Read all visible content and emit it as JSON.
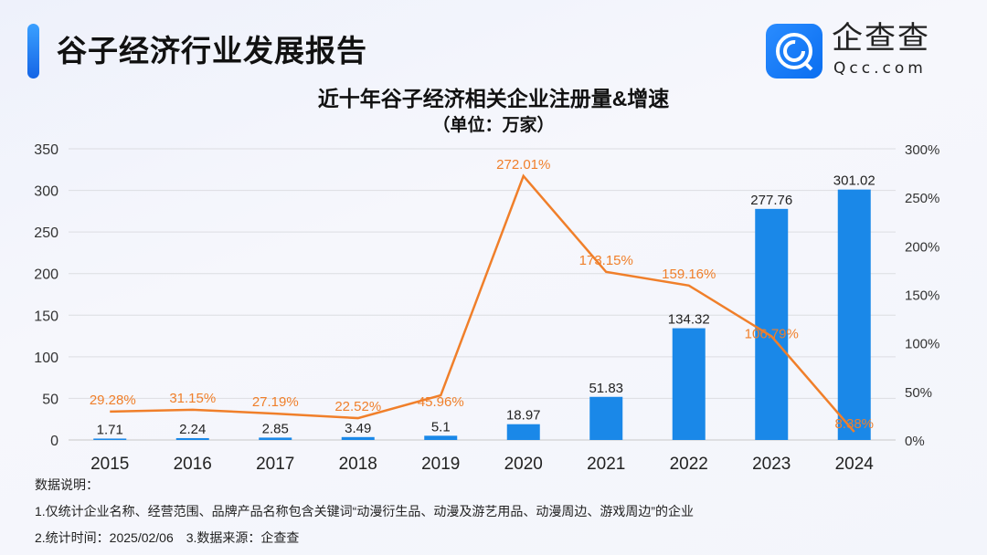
{
  "header": {
    "title": "谷子经济行业发展报告",
    "logo_cn": "企查查",
    "logo_en": "Qcc.com"
  },
  "chart_data": {
    "type": "bar+line",
    "title": "近十年谷子经济相关企业注册量&增速",
    "subtitle": "（单位：万家）",
    "categories": [
      "2015",
      "2016",
      "2017",
      "2018",
      "2019",
      "2020",
      "2021",
      "2022",
      "2023",
      "2024"
    ],
    "series": [
      {
        "type": "bar",
        "axis": "left",
        "color": "#1a88e8",
        "values": [
          1.71,
          2.24,
          2.85,
          3.49,
          5.1,
          18.97,
          51.83,
          134.32,
          277.76,
          301.02
        ],
        "labels": [
          "1.71",
          "2.24",
          "2.85",
          "3.49",
          "5.1",
          "18.97",
          "51.83",
          "134.32",
          "277.76",
          "301.02"
        ]
      },
      {
        "type": "line",
        "axis": "right",
        "color": "#f07f2a",
        "values": [
          29.28,
          31.15,
          27.19,
          22.52,
          45.96,
          272.01,
          173.15,
          159.16,
          106.79,
          8.38
        ],
        "labels": [
          "29.28%",
          "31.15%",
          "27.19%",
          "22.52%",
          "45.96%",
          "272.01%",
          "173.15%",
          "159.16%",
          "106.79%",
          "8.38%"
        ]
      }
    ],
    "ylim": [
      0,
      350
    ],
    "yticks": [
      "0",
      "50",
      "100",
      "150",
      "200",
      "250",
      "300",
      "350"
    ],
    "y2lim": [
      0,
      300
    ],
    "y2ticks": [
      "0%",
      "50%",
      "100%",
      "150%",
      "200%",
      "250%",
      "300%"
    ],
    "grid": true
  },
  "notes": {
    "heading": "数据说明：",
    "line1": "1.仅统计企业名称、经营范围、品牌产品名称包含关键词“动漫衍生品、动漫及游艺用品、动漫周边、游戏周边”的企业",
    "line2": "2.统计时间：2025/02/06　3.数据来源：企查查"
  }
}
